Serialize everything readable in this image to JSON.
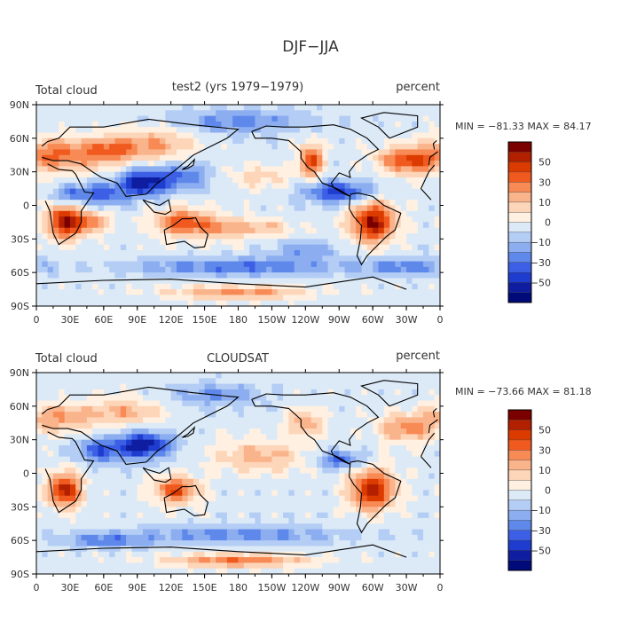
{
  "title": "DJF−JJA",
  "chart_data": [
    {
      "type": "heatmap",
      "label_left": "Total cloud",
      "subtitle": "test2 (yrs 1979−1979)",
      "units": "percent",
      "stats": "MIN = −81.33 MAX =  84.17",
      "xlim": [
        0,
        360
      ],
      "ylim": [
        -90,
        90
      ],
      "xticks": [
        "0",
        "30E",
        "60E",
        "90E",
        "120E",
        "150E",
        "180",
        "150W",
        "120W",
        "90W",
        "60W",
        "30W",
        "0"
      ],
      "yticks": [
        "90N",
        "60N",
        "30N",
        "0",
        "30S",
        "60S",
        "90S"
      ],
      "colorbar_labels": [
        "50",
        "30",
        "10",
        "0",
        "−10",
        "−30",
        "−50"
      ],
      "blobs": [
        {
          "lon": 20,
          "lat": 45,
          "v": 45,
          "rx": 40,
          "ry": 15
        },
        {
          "lon": 70,
          "lat": 50,
          "v": 40,
          "rx": 25,
          "ry": 12
        },
        {
          "lon": 110,
          "lat": 55,
          "v": 30,
          "rx": 30,
          "ry": 15
        },
        {
          "lon": 25,
          "lat": -15,
          "v": 75,
          "rx": 15,
          "ry": 15
        },
        {
          "lon": 50,
          "lat": -15,
          "v": 40,
          "rx": 15,
          "ry": 10
        },
        {
          "lon": 130,
          "lat": -15,
          "v": 50,
          "rx": 25,
          "ry": 12
        },
        {
          "lon": 165,
          "lat": -20,
          "v": 30,
          "rx": 25,
          "ry": 10
        },
        {
          "lon": 205,
          "lat": -20,
          "v": 25,
          "rx": 25,
          "ry": 8
        },
        {
          "lon": 300,
          "lat": -15,
          "v": 75,
          "rx": 20,
          "ry": 18
        },
        {
          "lon": 245,
          "lat": 40,
          "v": 60,
          "rx": 10,
          "ry": 15
        },
        {
          "lon": 330,
          "lat": 40,
          "v": 50,
          "rx": 25,
          "ry": 12
        },
        {
          "lon": 200,
          "lat": 25,
          "v": 20,
          "rx": 30,
          "ry": 10
        },
        {
          "lon": 95,
          "lat": 20,
          "v": -60,
          "rx": 20,
          "ry": 12
        },
        {
          "lon": 60,
          "lat": 10,
          "v": -40,
          "rx": 20,
          "ry": 10
        },
        {
          "lon": 130,
          "lat": 25,
          "v": -35,
          "rx": 25,
          "ry": 12
        },
        {
          "lon": 270,
          "lat": 12,
          "v": -50,
          "rx": 30,
          "ry": 10
        },
        {
          "lon": 30,
          "lat": 10,
          "v": -35,
          "rx": 15,
          "ry": 8
        },
        {
          "lon": 180,
          "lat": -55,
          "v": -35,
          "rx": 90,
          "ry": 8
        },
        {
          "lon": 330,
          "lat": -55,
          "v": -30,
          "rx": 40,
          "ry": 8
        },
        {
          "lon": 180,
          "lat": 75,
          "v": -30,
          "rx": 60,
          "ry": 10
        },
        {
          "lon": 240,
          "lat": -40,
          "v": -25,
          "rx": 30,
          "ry": 8
        },
        {
          "lon": 180,
          "lat": -78,
          "v": 40,
          "rx": 60,
          "ry": 6
        }
      ]
    },
    {
      "type": "heatmap",
      "label_left": "Total cloud",
      "subtitle": "CLOUDSAT",
      "units": "percent",
      "stats": "MIN = −73.66 MAX =  81.18",
      "xlim": [
        0,
        360
      ],
      "ylim": [
        -90,
        90
      ],
      "xticks": [
        "0",
        "30E",
        "60E",
        "90E",
        "120E",
        "150E",
        "180",
        "150W",
        "120W",
        "90W",
        "60W",
        "30W",
        "0"
      ],
      "yticks": [
        "90N",
        "60N",
        "30N",
        "0",
        "30S",
        "60S",
        "90S"
      ],
      "colorbar_labels": [
        "50",
        "30",
        "10",
        "0",
        "−10",
        "−30",
        "−50"
      ],
      "blobs": [
        {
          "lon": 20,
          "lat": 50,
          "v": 35,
          "rx": 35,
          "ry": 12
        },
        {
          "lon": 80,
          "lat": 55,
          "v": 30,
          "rx": 30,
          "ry": 12
        },
        {
          "lon": 25,
          "lat": -15,
          "v": 70,
          "rx": 15,
          "ry": 15
        },
        {
          "lon": 125,
          "lat": -15,
          "v": 55,
          "rx": 20,
          "ry": 12
        },
        {
          "lon": 300,
          "lat": -15,
          "v": 70,
          "rx": 20,
          "ry": 18
        },
        {
          "lon": 200,
          "lat": 15,
          "v": 30,
          "rx": 40,
          "ry": 15
        },
        {
          "lon": 330,
          "lat": 40,
          "v": 40,
          "rx": 25,
          "ry": 12
        },
        {
          "lon": 240,
          "lat": 45,
          "v": 35,
          "rx": 15,
          "ry": 12
        },
        {
          "lon": 95,
          "lat": 25,
          "v": -65,
          "rx": 25,
          "ry": 12
        },
        {
          "lon": 55,
          "lat": 20,
          "v": -40,
          "rx": 20,
          "ry": 10
        },
        {
          "lon": 270,
          "lat": 12,
          "v": -40,
          "rx": 20,
          "ry": 8
        },
        {
          "lon": 180,
          "lat": -55,
          "v": -30,
          "rx": 90,
          "ry": 8
        },
        {
          "lon": 160,
          "lat": 70,
          "v": -25,
          "rx": 40,
          "ry": 10
        },
        {
          "lon": 180,
          "lat": -78,
          "v": 45,
          "rx": 60,
          "ry": 6
        },
        {
          "lon": 60,
          "lat": -60,
          "v": -30,
          "rx": 40,
          "ry": 6
        }
      ]
    }
  ],
  "colorbar_colors": [
    "#7a0000",
    "#b22000",
    "#dc3b00",
    "#f05a1e",
    "#f78a55",
    "#fab48c",
    "#fdd5b8",
    "#fff0e1",
    "#dceaf7",
    "#b4cdf5",
    "#8caeF0",
    "#5f88eb",
    "#3c5fe6",
    "#1e3ccd",
    "#0f1ea0",
    "#000a78"
  ],
  "land_outline_color": "#000000"
}
